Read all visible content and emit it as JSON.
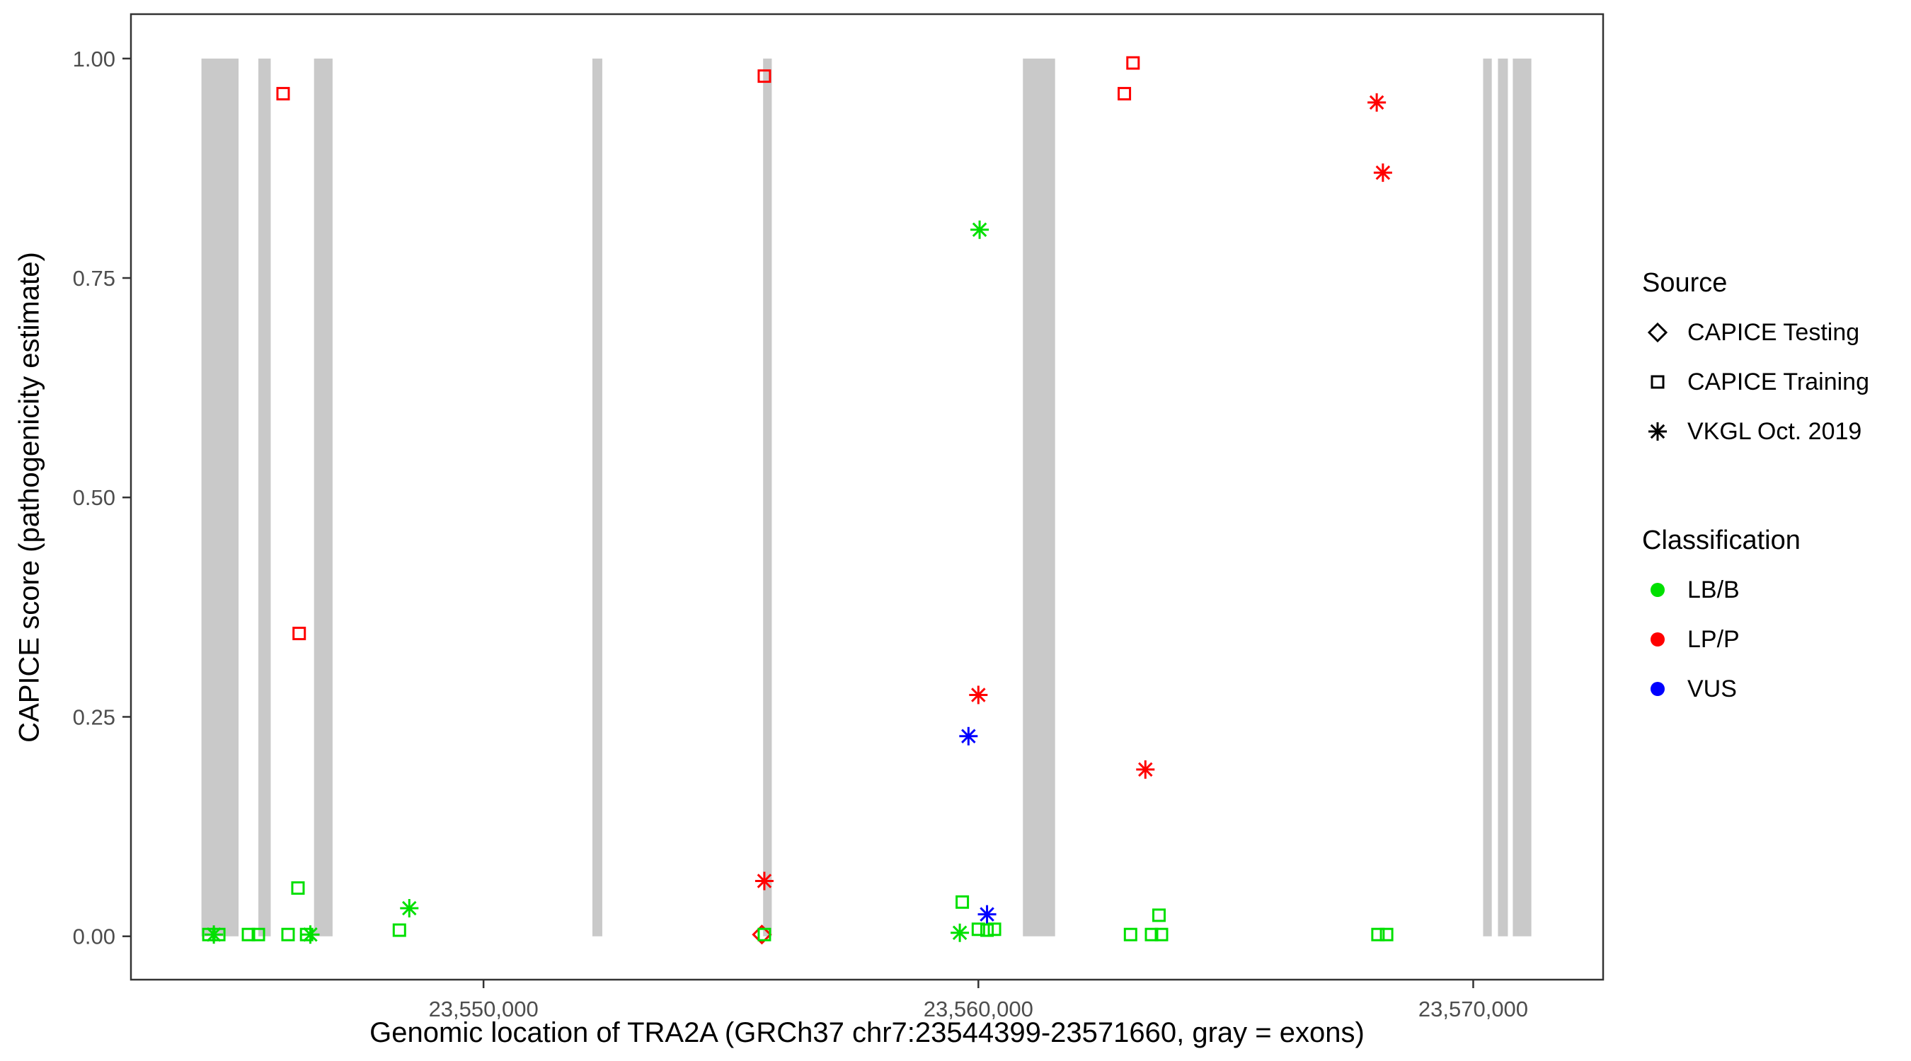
{
  "figure": {
    "background": "#FFFFFF",
    "panel_border_color": "#333333",
    "tick_label_color": "#4D4D4D"
  },
  "chart_data": {
    "type": "scatter",
    "title": "",
    "xlabel": "Genomic location of TRA2A (GRCh37 chr7:23544399-23571660, gray = exons)",
    "ylabel": "CAPICE score (pathogenicity estimate)",
    "grid": false,
    "legend_position": "right",
    "x_domain": [
      23542875,
      23572625
    ],
    "y_domain": [
      -0.0494,
      1.0506
    ],
    "gene_range": [
      23544399,
      23571660
    ],
    "x_ticks": [
      {
        "value": 23550000,
        "label": "23,550,000"
      },
      {
        "value": 23560000,
        "label": "23,560,000"
      },
      {
        "value": 23570000,
        "label": "23,570,000"
      }
    ],
    "y_ticks": [
      {
        "value": 0.0,
        "label": "0.00"
      },
      {
        "value": 0.25,
        "label": "0.25"
      },
      {
        "value": 0.5,
        "label": "0.50"
      },
      {
        "value": 0.75,
        "label": "0.75"
      },
      {
        "value": 1.0,
        "label": "1.00"
      }
    ],
    "exon_color": "#C9C9C9",
    "exons": [
      {
        "start": 23544300,
        "end": 23545050
      },
      {
        "start": 23545450,
        "end": 23545700
      },
      {
        "start": 23546575,
        "end": 23546950
      },
      {
        "start": 23552200,
        "end": 23552400
      },
      {
        "start": 23555650,
        "end": 23555825
      },
      {
        "start": 23560900,
        "end": 23561550
      },
      {
        "start": 23570200,
        "end": 23570375
      },
      {
        "start": 23570500,
        "end": 23570700
      },
      {
        "start": 23570800,
        "end": 23571175
      }
    ],
    "colors": {
      "LB/B": "#00E000",
      "LP/P": "#FF0000",
      "VUS": "#0000FF"
    },
    "shapes": {
      "CAPICE Testing": "diamond",
      "CAPICE Training": "square",
      "VKGL Oct. 2019": "asterisk"
    },
    "points": [
      {
        "x": 23545950,
        "y": 0.96,
        "source": "CAPICE Training",
        "classification": "LP/P"
      },
      {
        "x": 23546275,
        "y": 0.345,
        "source": "CAPICE Training",
        "classification": "LP/P"
      },
      {
        "x": 23555675,
        "y": 0.98,
        "source": "CAPICE Training",
        "classification": "LP/P"
      },
      {
        "x": 23563125,
        "y": 0.995,
        "source": "CAPICE Training",
        "classification": "LP/P"
      },
      {
        "x": 23562950,
        "y": 0.96,
        "source": "CAPICE Training",
        "classification": "LP/P"
      },
      {
        "x": 23568050,
        "y": 0.95,
        "source": "VKGL Oct. 2019",
        "classification": "LP/P"
      },
      {
        "x": 23568175,
        "y": 0.87,
        "source": "VKGL Oct. 2019",
        "classification": "LP/P"
      },
      {
        "x": 23560000,
        "y": 0.275,
        "source": "VKGL Oct. 2019",
        "classification": "LP/P"
      },
      {
        "x": 23563375,
        "y": 0.19,
        "source": "VKGL Oct. 2019",
        "classification": "LP/P"
      },
      {
        "x": 23555675,
        "y": 0.063,
        "source": "VKGL Oct. 2019",
        "classification": "LP/P"
      },
      {
        "x": 23560025,
        "y": 0.805,
        "source": "VKGL Oct. 2019",
        "classification": "LB/B"
      },
      {
        "x": 23548500,
        "y": 0.032,
        "source": "VKGL Oct. 2019",
        "classification": "LB/B"
      },
      {
        "x": 23544550,
        "y": 0.002,
        "source": "VKGL Oct. 2019",
        "classification": "LB/B"
      },
      {
        "x": 23546500,
        "y": 0.002,
        "source": "VKGL Oct. 2019",
        "classification": "LB/B"
      },
      {
        "x": 23559625,
        "y": 0.004,
        "source": "VKGL Oct. 2019",
        "classification": "LB/B"
      },
      {
        "x": 23559800,
        "y": 0.228,
        "source": "VKGL Oct. 2019",
        "classification": "VUS"
      },
      {
        "x": 23560175,
        "y": 0.025,
        "source": "VKGL Oct. 2019",
        "classification": "VUS"
      },
      {
        "x": 23555625,
        "y": 0.002,
        "source": "CAPICE Testing",
        "classification": "LP/P"
      },
      {
        "x": 23546250,
        "y": 0.055,
        "source": "CAPICE Training",
        "classification": "LB/B"
      },
      {
        "x": 23544450,
        "y": 0.002,
        "source": "CAPICE Training",
        "classification": "LB/B"
      },
      {
        "x": 23544650,
        "y": 0.002,
        "source": "CAPICE Training",
        "classification": "LB/B"
      },
      {
        "x": 23545250,
        "y": 0.002,
        "source": "CAPICE Training",
        "classification": "LB/B"
      },
      {
        "x": 23545450,
        "y": 0.002,
        "source": "CAPICE Training",
        "classification": "LB/B"
      },
      {
        "x": 23546050,
        "y": 0.002,
        "source": "CAPICE Training",
        "classification": "LB/B"
      },
      {
        "x": 23546425,
        "y": 0.002,
        "source": "CAPICE Training",
        "classification": "LB/B"
      },
      {
        "x": 23548300,
        "y": 0.007,
        "source": "CAPICE Training",
        "classification": "LB/B"
      },
      {
        "x": 23555675,
        "y": 0.002,
        "source": "CAPICE Training",
        "classification": "LB/B"
      },
      {
        "x": 23559675,
        "y": 0.039,
        "source": "CAPICE Training",
        "classification": "LB/B"
      },
      {
        "x": 23560000,
        "y": 0.008,
        "source": "CAPICE Training",
        "classification": "LB/B"
      },
      {
        "x": 23560175,
        "y": 0.007,
        "source": "CAPICE Training",
        "classification": "LB/B"
      },
      {
        "x": 23560325,
        "y": 0.008,
        "source": "CAPICE Training",
        "classification": "LB/B"
      },
      {
        "x": 23563075,
        "y": 0.002,
        "source": "CAPICE Training",
        "classification": "LB/B"
      },
      {
        "x": 23563500,
        "y": 0.002,
        "source": "CAPICE Training",
        "classification": "LB/B"
      },
      {
        "x": 23563650,
        "y": 0.024,
        "source": "CAPICE Training",
        "classification": "LB/B"
      },
      {
        "x": 23563700,
        "y": 0.002,
        "source": "CAPICE Training",
        "classification": "LB/B"
      },
      {
        "x": 23568075,
        "y": 0.002,
        "source": "CAPICE Training",
        "classification": "LB/B"
      },
      {
        "x": 23568250,
        "y": 0.002,
        "source": "CAPICE Training",
        "classification": "LB/B"
      }
    ]
  },
  "legend": {
    "source": {
      "title": "Source",
      "items": [
        {
          "label": "CAPICE Testing",
          "shape": "diamond",
          "icon": "diamond-icon"
        },
        {
          "label": "CAPICE Training",
          "shape": "square",
          "icon": "square-icon"
        },
        {
          "label": "VKGL Oct. 2019",
          "shape": "asterisk",
          "icon": "asterisk-icon"
        }
      ]
    },
    "classification": {
      "title": "Classification",
      "items": [
        {
          "label": "LB/B",
          "color": "#00E000"
        },
        {
          "label": "LP/P",
          "color": "#FF0000"
        },
        {
          "label": "VUS",
          "color": "#0000FF"
        }
      ]
    }
  }
}
